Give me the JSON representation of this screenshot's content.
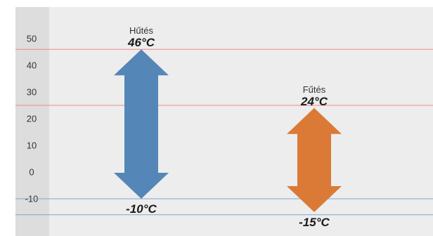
{
  "chart_data": {
    "type": "range-arrows",
    "y_ticks": [
      50,
      40,
      30,
      20,
      10,
      0,
      -10
    ],
    "ylim": [
      -17,
      60
    ],
    "grid": false,
    "reference_lines": [
      {
        "value": 46,
        "color": "#ee8a8a"
      },
      {
        "value": 25,
        "color": "#ee8a8a"
      },
      {
        "value": -10,
        "color": "#7aa6d6"
      },
      {
        "value": -16,
        "color": "#7aa6d6"
      }
    ],
    "ranges": [
      {
        "label": "Hűtés",
        "max": 46,
        "min": -10,
        "max_label": "46°C",
        "min_label": "-10°C",
        "color": "#5586b8"
      },
      {
        "label": "Fűtés",
        "max": 24,
        "min": -15,
        "max_label": "24°C",
        "min_label": "-15°C",
        "color": "#db7a36"
      }
    ]
  },
  "colors": {
    "plot_background": "#ededed",
    "axis_band": "#dddddd"
  }
}
